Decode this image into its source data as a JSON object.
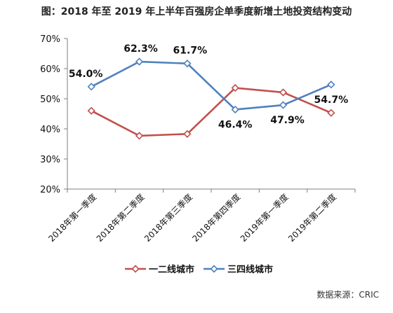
{
  "title": "图：2018 年至 2019 年上半年百强房企单季度新增土地投资结构变动",
  "source": "数据来源：CRIC",
  "colors": {
    "series_1": "#c0504d",
    "series_2": "#4f81bd",
    "axis": "#7f7f7f"
  },
  "chart_data": {
    "type": "line",
    "categories": [
      "2018年第一季度",
      "2018年第二季度",
      "2018年第三季度",
      "2018年第四季度",
      "2019年第一季度",
      "2019年第二季度"
    ],
    "series": [
      {
        "name": "一二线城市",
        "values": [
          46.0,
          37.7,
          38.3,
          53.6,
          52.1,
          45.3
        ],
        "color": "#c0504d",
        "marker": "diamond-hollow"
      },
      {
        "name": "三四线城市",
        "values": [
          54.0,
          62.3,
          61.7,
          46.4,
          47.9,
          54.7
        ],
        "color": "#4f81bd",
        "marker": "diamond-hollow",
        "data_labels": [
          "54.0%",
          "62.3%",
          "61.7%",
          "46.4%",
          "47.9%",
          "54.7%"
        ]
      }
    ],
    "ylim": [
      20,
      70
    ],
    "yticks": [
      "20%",
      "30%",
      "40%",
      "50%",
      "60%",
      "70%"
    ],
    "grid": false,
    "legend": "bottom"
  }
}
